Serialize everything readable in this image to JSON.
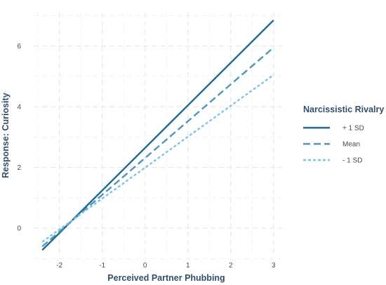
{
  "chart_data": {
    "type": "line",
    "xlabel": "Perceived Partner Phubbing",
    "ylabel": "Response: Curiosity",
    "xlim": [
      -2.6,
      3.2
    ],
    "ylim": [
      -0.9,
      7.1
    ],
    "xticks": [
      "-2",
      "-1",
      "0",
      "1",
      "2",
      "3"
    ],
    "yticks": [
      "0",
      "2",
      "4",
      "6"
    ],
    "grid": true,
    "legend": {
      "title": "Narcissistic Rivalry",
      "placement": "right"
    },
    "series": [
      {
        "name": "+ 1 SD",
        "x": [
          -2.4,
          3.0
        ],
        "values": [
          -0.72,
          6.85
        ],
        "color": "#1c6a94",
        "dash": "solid"
      },
      {
        "name": "Mean",
        "x": [
          -2.4,
          3.0
        ],
        "values": [
          -0.6,
          5.95
        ],
        "color": "#4a96c3",
        "dash": "dashed"
      },
      {
        "name": "- 1 SD",
        "x": [
          -2.4,
          3.0
        ],
        "values": [
          -0.45,
          5.05
        ],
        "color": "#7cc4e8",
        "dash": "dotted"
      }
    ]
  }
}
